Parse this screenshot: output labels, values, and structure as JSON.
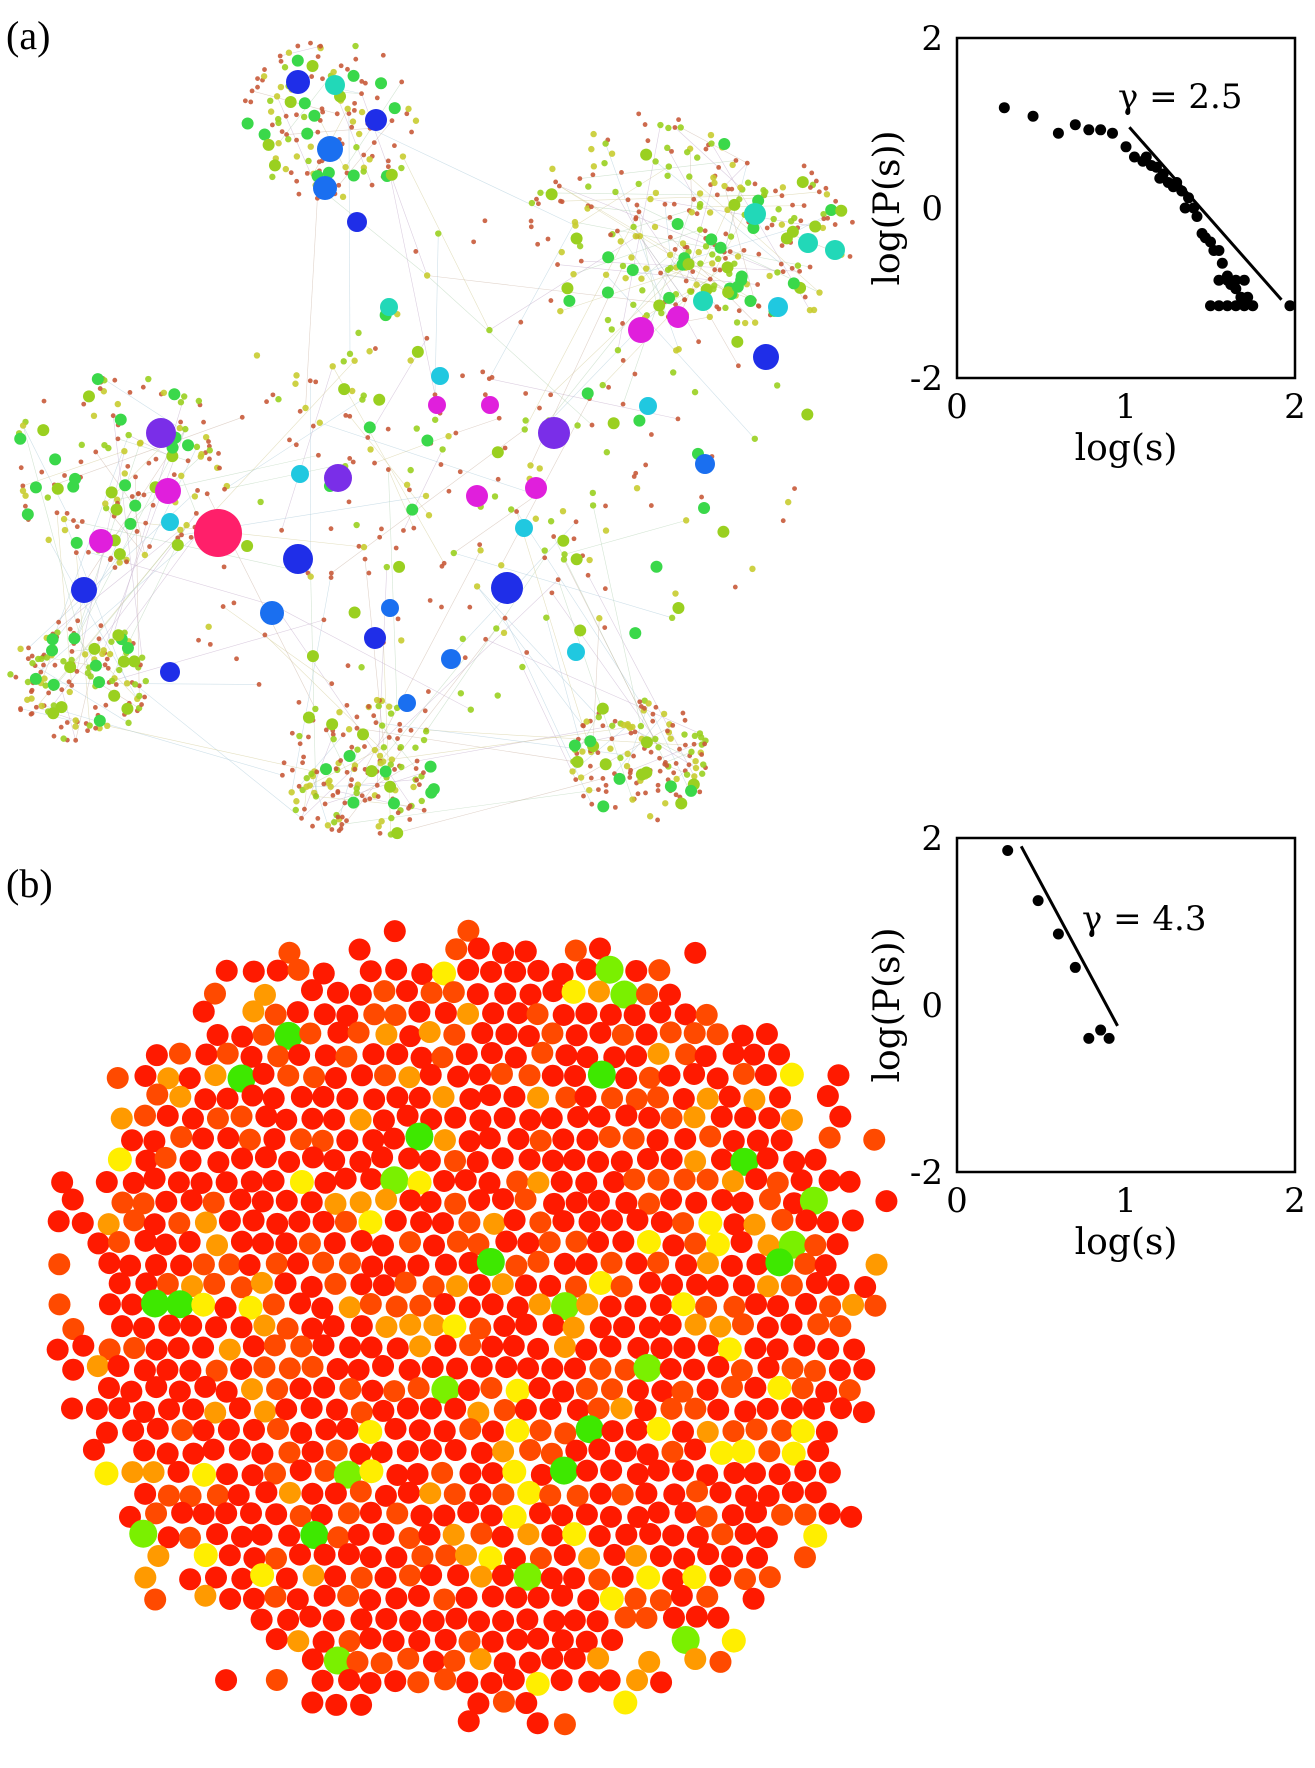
{
  "panels": {
    "a": {
      "label": "(a)"
    },
    "b": {
      "label": "(b)"
    }
  },
  "chart_data": [
    {
      "type": "scatter",
      "panel": "(a)",
      "xlabel": "log(s)",
      "ylabel": "log(P(s))",
      "xlim": [
        0,
        2
      ],
      "ylim": [
        -2,
        2
      ],
      "xticks": [
        "0",
        "1",
        "2"
      ],
      "yticks": [
        "2",
        "0",
        "-2"
      ],
      "annotation": "γ = 2.5",
      "points": [
        [
          0.28,
          1.18
        ],
        [
          0.45,
          1.08
        ],
        [
          0.6,
          0.88
        ],
        [
          0.7,
          0.98
        ],
        [
          0.78,
          0.92
        ],
        [
          0.85,
          0.92
        ],
        [
          0.92,
          0.88
        ],
        [
          1.0,
          0.72
        ],
        [
          1.05,
          0.6
        ],
        [
          1.1,
          0.55
        ],
        [
          1.12,
          0.6
        ],
        [
          1.15,
          0.5
        ],
        [
          1.18,
          0.48
        ],
        [
          1.2,
          0.35
        ],
        [
          1.22,
          0.4
        ],
        [
          1.25,
          0.3
        ],
        [
          1.28,
          0.25
        ],
        [
          1.3,
          0.3
        ],
        [
          1.33,
          0.2
        ],
        [
          1.35,
          0.0
        ],
        [
          1.37,
          0.12
        ],
        [
          1.4,
          0.0
        ],
        [
          1.42,
          -0.1
        ],
        [
          1.45,
          -0.3
        ],
        [
          1.47,
          -0.35
        ],
        [
          1.5,
          -0.4
        ],
        [
          1.52,
          -0.5
        ],
        [
          1.55,
          -0.5
        ],
        [
          1.57,
          -0.65
        ],
        [
          1.6,
          -0.8
        ],
        [
          1.62,
          -0.9
        ],
        [
          1.65,
          -0.95
        ],
        [
          1.68,
          -1.05
        ],
        [
          1.72,
          -1.05
        ],
        [
          1.5,
          -1.15
        ],
        [
          1.55,
          -1.15
        ],
        [
          1.6,
          -1.15
        ],
        [
          1.65,
          -1.15
        ],
        [
          1.7,
          -1.15
        ],
        [
          1.75,
          -1.15
        ],
        [
          1.55,
          -0.85
        ],
        [
          1.6,
          -0.85
        ],
        [
          1.65,
          -0.85
        ],
        [
          1.7,
          -0.85
        ],
        [
          1.97,
          -1.15
        ]
      ],
      "fit_line": [
        [
          1.02,
          0.95
        ],
        [
          1.92,
          -1.08
        ]
      ]
    },
    {
      "type": "scatter",
      "panel": "(b)",
      "xlabel": "log(s)",
      "ylabel": "log(P(s))",
      "xlim": [
        0,
        2
      ],
      "ylim": [
        -2,
        2
      ],
      "xticks": [
        "0",
        "1",
        "2"
      ],
      "yticks": [
        "2",
        "0",
        "-2"
      ],
      "annotation": "γ = 4.3",
      "points": [
        [
          0.3,
          1.85
        ],
        [
          0.48,
          1.25
        ],
        [
          0.6,
          0.85
        ],
        [
          0.7,
          0.45
        ],
        [
          0.78,
          -0.4
        ],
        [
          0.85,
          -0.3
        ],
        [
          0.9,
          -0.4
        ]
      ],
      "fit_line": [
        [
          0.38,
          1.9
        ],
        [
          0.95,
          -0.25
        ]
      ]
    }
  ],
  "colors": {
    "network_a": [
      "#ff1f6a",
      "#e01fdc",
      "#7a2ee8",
      "#1f2ee8",
      "#1a6ff0",
      "#20c8e0",
      "#22d8b8",
      "#3ad84a",
      "#9ad020",
      "#d8d020",
      "#d04a20"
    ],
    "network_b": [
      "#ff1a00",
      "#ff4a00",
      "#ff9a00",
      "#ffee00",
      "#7af000",
      "#3ee800"
    ]
  }
}
